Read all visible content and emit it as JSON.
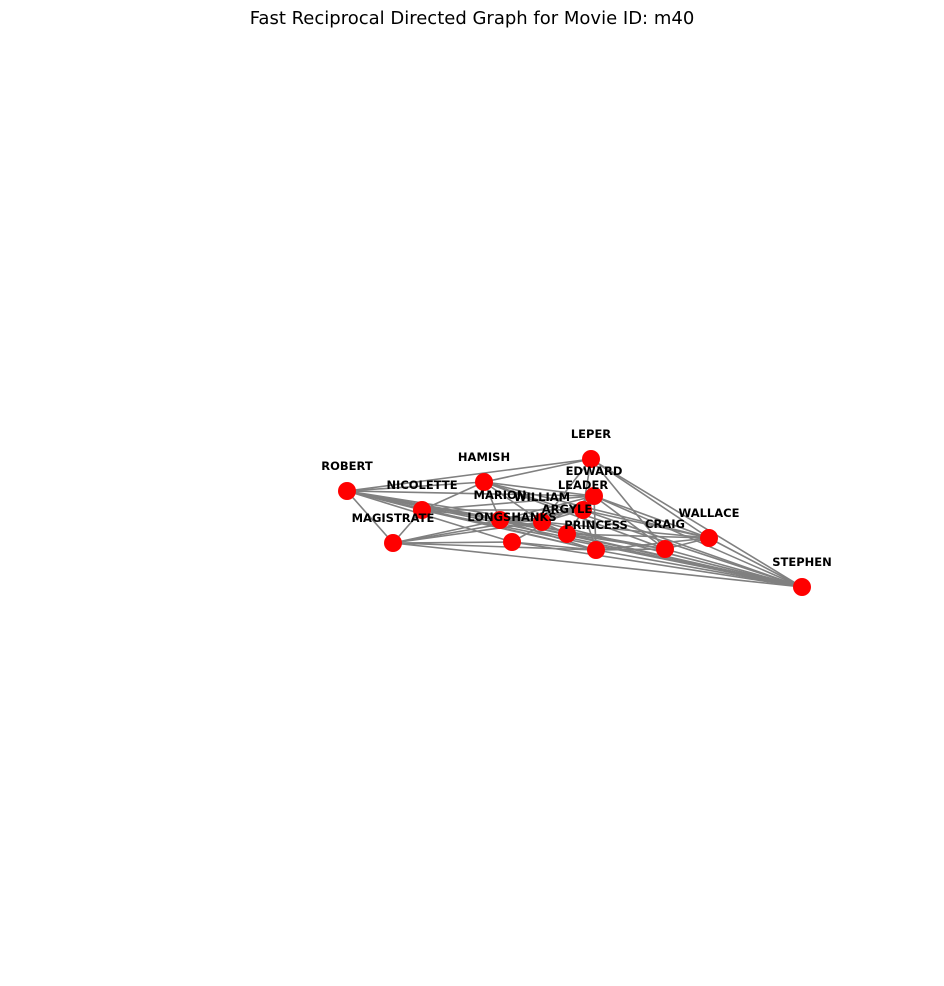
{
  "title": "Fast Reciprocal Directed Graph for Movie ID: m40",
  "colors": {
    "node": "#ff0000",
    "edge": "#808080",
    "label": "#000000"
  },
  "nodes": [
    {
      "id": "ROBERT",
      "label": "ROBERT"
    },
    {
      "id": "NICOLETTE",
      "label": "NICOLETTE"
    },
    {
      "id": "MAGISTRATE",
      "label": "MAGISTRATE"
    },
    {
      "id": "HAMISH",
      "label": "HAMISH"
    },
    {
      "id": "MARION",
      "label": "MARION"
    },
    {
      "id": "LONGSHANKS",
      "label": "LONGSHANKS"
    },
    {
      "id": "WILLIAM",
      "label": "WILLIAM"
    },
    {
      "id": "ARGYLE",
      "label": "ARGYLE"
    },
    {
      "id": "LEADER",
      "label": "LEADER"
    },
    {
      "id": "EDWARD",
      "label": "EDWARD"
    },
    {
      "id": "LEPER",
      "label": "LEPER"
    },
    {
      "id": "PRINCESS",
      "label": "PRINCESS"
    },
    {
      "id": "CRAIG",
      "label": "CRAIG"
    },
    {
      "id": "WALLACE",
      "label": "WALLACE"
    },
    {
      "id": "STEPHEN",
      "label": "STEPHEN"
    }
  ],
  "edges": [
    [
      "ROBERT",
      "NICOLETTE"
    ],
    [
      "ROBERT",
      "MAGISTRATE"
    ],
    [
      "ROBERT",
      "HAMISH"
    ],
    [
      "ROBERT",
      "MARION"
    ],
    [
      "ROBERT",
      "WILLIAM"
    ],
    [
      "ROBERT",
      "ARGYLE"
    ],
    [
      "ROBERT",
      "EDWARD"
    ],
    [
      "ROBERT",
      "LEPER"
    ],
    [
      "ROBERT",
      "PRINCESS"
    ],
    [
      "ROBERT",
      "STEPHEN"
    ],
    [
      "ROBERT",
      "CRAIG"
    ],
    [
      "ROBERT",
      "LONGSHANKS"
    ],
    [
      "NICOLETTE",
      "HAMISH"
    ],
    [
      "NICOLETTE",
      "WILLIAM"
    ],
    [
      "NICOLETTE",
      "MAGISTRATE"
    ],
    [
      "NICOLETTE",
      "EDWARD"
    ],
    [
      "NICOLETTE",
      "STEPHEN"
    ],
    [
      "NICOLETTE",
      "PRINCESS"
    ],
    [
      "NICOLETTE",
      "LEADER"
    ],
    [
      "MAGISTRATE",
      "MARION"
    ],
    [
      "MAGISTRATE",
      "WILLIAM"
    ],
    [
      "MAGISTRATE",
      "STEPHEN"
    ],
    [
      "MAGISTRATE",
      "PRINCESS"
    ],
    [
      "MAGISTRATE",
      "LONGSHANKS"
    ],
    [
      "MAGISTRATE",
      "LEADER"
    ],
    [
      "HAMISH",
      "LEPER"
    ],
    [
      "HAMISH",
      "WILLIAM"
    ],
    [
      "HAMISH",
      "WALLACE"
    ],
    [
      "HAMISH",
      "STEPHEN"
    ],
    [
      "HAMISH",
      "EDWARD"
    ],
    [
      "HAMISH",
      "MARION"
    ],
    [
      "HAMISH",
      "CRAIG"
    ],
    [
      "MARION",
      "WILLIAM"
    ],
    [
      "MARION",
      "PRINCESS"
    ],
    [
      "MARION",
      "STEPHEN"
    ],
    [
      "MARION",
      "LEADER"
    ],
    [
      "MARION",
      "CRAIG"
    ],
    [
      "MARION",
      "EDWARD"
    ],
    [
      "LONGSHANKS",
      "PRINCESS"
    ],
    [
      "LONGSHANKS",
      "STEPHEN"
    ],
    [
      "LONGSHANKS",
      "EDWARD"
    ],
    [
      "WILLIAM",
      "ARGYLE"
    ],
    [
      "WILLIAM",
      "LEPER"
    ],
    [
      "WILLIAM",
      "STEPHEN"
    ],
    [
      "WILLIAM",
      "WALLACE"
    ],
    [
      "WILLIAM",
      "LEADER"
    ],
    [
      "WILLIAM",
      "EDWARD"
    ],
    [
      "ARGYLE",
      "EDWARD"
    ],
    [
      "ARGYLE",
      "CRAIG"
    ],
    [
      "ARGYLE",
      "WALLACE"
    ],
    [
      "ARGYLE",
      "STEPHEN"
    ],
    [
      "LEADER",
      "PRINCESS"
    ],
    [
      "LEADER",
      "STEPHEN"
    ],
    [
      "LEADER",
      "WALLACE"
    ],
    [
      "EDWARD",
      "WALLACE"
    ],
    [
      "EDWARD",
      "PRINCESS"
    ],
    [
      "EDWARD",
      "CRAIG"
    ],
    [
      "EDWARD",
      "STEPHEN"
    ],
    [
      "LEPER",
      "WALLACE"
    ],
    [
      "LEPER",
      "CRAIG"
    ],
    [
      "LEPER",
      "LEADER"
    ],
    [
      "LEPER",
      "STEPHEN"
    ],
    [
      "PRINCESS",
      "CRAIG"
    ],
    [
      "PRINCESS",
      "STEPHEN"
    ],
    [
      "PRINCESS",
      "WALLACE"
    ],
    [
      "CRAIG",
      "WALLACE"
    ],
    [
      "CRAIG",
      "STEPHEN"
    ],
    [
      "WALLACE",
      "STEPHEN"
    ]
  ]
}
